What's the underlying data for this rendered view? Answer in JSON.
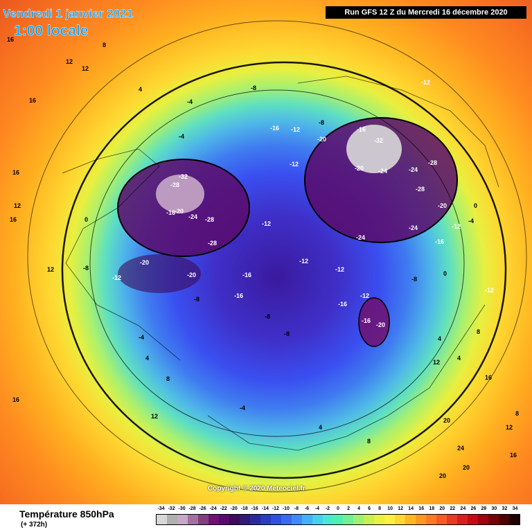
{
  "header": {
    "date_label": "Vendredi 1 janvier 2021",
    "time_label": "1:00 locale",
    "run_label": "Run GFS 12 Z du Mercredi 16 décembre 2020"
  },
  "copyright": "Copyright © 2020 Meteociel.fr",
  "footer": {
    "title": "Température 850hPa",
    "subtitle": "(+ 372h)"
  },
  "legend": {
    "labels": [
      "-34",
      "-32",
      "-30",
      "-28",
      "-26",
      "-24",
      "-22",
      "-20",
      "-18",
      "-16",
      "-14",
      "-12",
      "-10",
      "-8",
      "-6",
      "-4",
      "-2",
      "0",
      "2",
      "4",
      "6",
      "8",
      "10",
      "12",
      "14",
      "16",
      "18",
      "20",
      "22",
      "24",
      "26",
      "28",
      "30",
      "32",
      "34"
    ],
    "colors": [
      "#d8d8d8",
      "#b0b0b0",
      "#c8a8c8",
      "#a070a0",
      "#804080",
      "#701070",
      "#5a0a6a",
      "#3c0a5a",
      "#301a78",
      "#2a2aa0",
      "#2a3cc0",
      "#3050e0",
      "#3a6af0",
      "#3f8aff",
      "#42b0ff",
      "#46d0f0",
      "#48e8d8",
      "#50f0b0",
      "#70f090",
      "#a0f070",
      "#c8f050",
      "#e8f040",
      "#fff040",
      "#ffd830",
      "#ffb820",
      "#ff9820",
      "#ff7a20",
      "#f85a20",
      "#e83a20",
      "#d82020",
      "#c80a18",
      "#a00010",
      "#780008",
      "#500000",
      "#200000"
    ]
  },
  "map_labels": [
    {
      "t": "16"
    },
    {
      "t": "16"
    },
    {
      "t": "12"
    },
    {
      "t": "12"
    },
    {
      "t": "8"
    },
    {
      "t": "16"
    },
    {
      "t": "16"
    },
    {
      "t": "12"
    },
    {
      "t": "12"
    },
    {
      "t": "4"
    },
    {
      "t": "-4"
    },
    {
      "t": "-4"
    },
    {
      "t": "-8"
    },
    {
      "t": "-12"
    },
    {
      "t": "-16"
    },
    {
      "t": "-12"
    },
    {
      "t": "-8"
    },
    {
      "t": "-16"
    },
    {
      "t": "-12"
    },
    {
      "t": "-20"
    },
    {
      "t": "-32"
    },
    {
      "t": "-24"
    },
    {
      "t": "-28"
    },
    {
      "t": "-24"
    },
    {
      "t": "-20"
    },
    {
      "t": "-28"
    },
    {
      "t": "-24"
    },
    {
      "t": "-16"
    },
    {
      "t": "-12"
    },
    {
      "t": "-20"
    },
    {
      "t": "-28"
    },
    {
      "t": "-32"
    },
    {
      "t": "-28"
    },
    {
      "t": "-16"
    },
    {
      "t": "-20"
    },
    {
      "t": "-24"
    },
    {
      "t": "-28"
    },
    {
      "t": "-20"
    },
    {
      "t": "-12"
    },
    {
      "t": "-8"
    },
    {
      "t": "-12"
    },
    {
      "t": "-16"
    },
    {
      "t": "-20"
    },
    {
      "t": "-16"
    },
    {
      "t": "-12"
    },
    {
      "t": "-8"
    },
    {
      "t": "-4"
    },
    {
      "t": "0"
    },
    {
      "t": "4"
    },
    {
      "t": "8"
    },
    {
      "t": "12"
    },
    {
      "t": "16"
    },
    {
      "t": "20"
    },
    {
      "t": "24"
    },
    {
      "t": "20"
    },
    {
      "t": "16"
    },
    {
      "t": "12"
    },
    {
      "t": "8"
    },
    {
      "t": "4"
    },
    {
      "t": "-8"
    },
    {
      "t": "-12"
    },
    {
      "t": "-16"
    },
    {
      "t": "-20"
    },
    {
      "t": "-24"
    },
    {
      "t": "-16"
    },
    {
      "t": "-12"
    },
    {
      "t": "-8"
    },
    {
      "t": "-4"
    },
    {
      "t": "4"
    },
    {
      "t": "8"
    },
    {
      "t": "12"
    },
    {
      "t": "16"
    },
    {
      "t": "0"
    },
    {
      "t": "-4"
    },
    {
      "t": "-8"
    },
    {
      "t": "-12"
    },
    {
      "t": "8"
    },
    {
      "t": "4"
    },
    {
      "t": "0"
    },
    {
      "t": "20"
    }
  ]
}
